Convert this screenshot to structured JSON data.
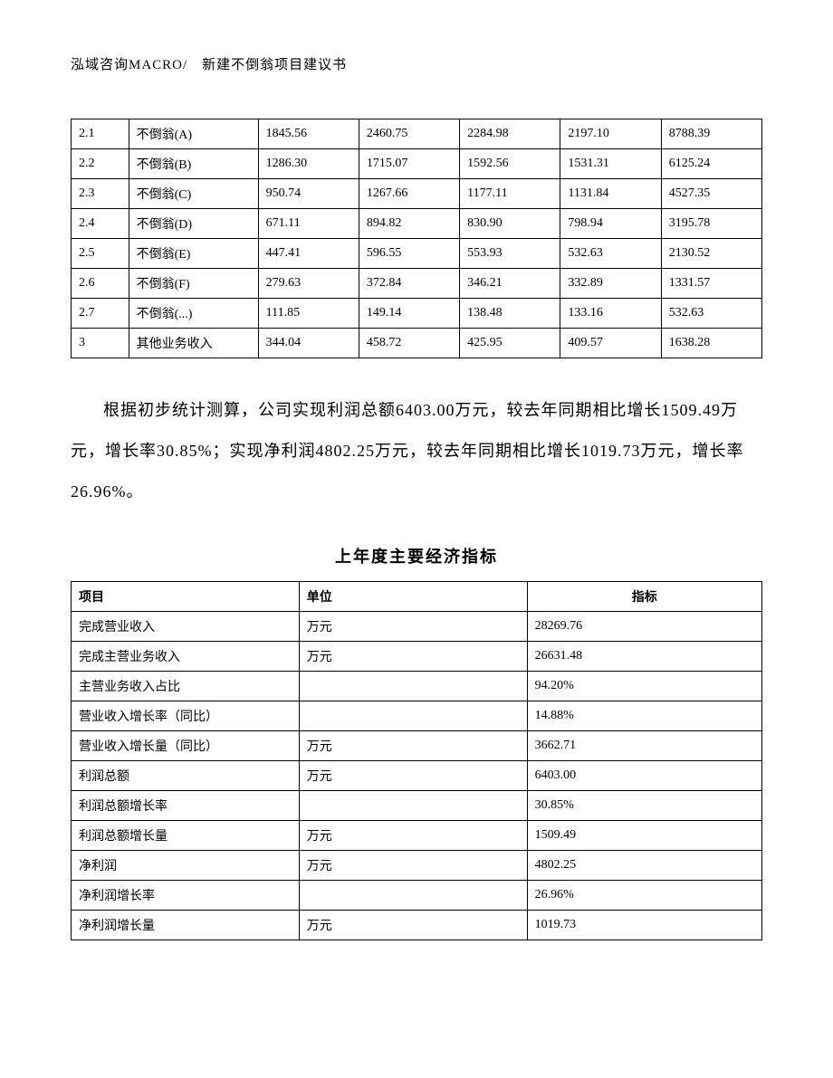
{
  "header": "泓域咨询MACRO/　新建不倒翁项目建议书",
  "table1": {
    "type": "table",
    "border_color": "#000000",
    "background_color": "#ffffff",
    "font_size": 14,
    "rows": [
      [
        "2.1",
        "不倒翁(A)",
        "1845.56",
        "2460.75",
        "2284.98",
        "2197.10",
        "8788.39"
      ],
      [
        "2.2",
        "不倒翁(B)",
        "1286.30",
        "1715.07",
        "1592.56",
        "1531.31",
        "6125.24"
      ],
      [
        "2.3",
        "不倒翁(C)",
        "950.74",
        "1267.66",
        "1177.11",
        "1131.84",
        "4527.35"
      ],
      [
        "2.4",
        "不倒翁(D)",
        "671.11",
        "894.82",
        "830.90",
        "798.94",
        "3195.78"
      ],
      [
        "2.5",
        "不倒翁(E)",
        "447.41",
        "596.55",
        "553.93",
        "532.63",
        "2130.52"
      ],
      [
        "2.6",
        "不倒翁(F)",
        "279.63",
        "372.84",
        "346.21",
        "332.89",
        "1331.57"
      ],
      [
        "2.7",
        "不倒翁(...)",
        "111.85",
        "149.14",
        "138.48",
        "133.16",
        "532.63"
      ],
      [
        "3",
        "其他业务收入",
        "344.04",
        "458.72",
        "425.95",
        "409.57",
        "1638.28"
      ]
    ]
  },
  "paragraph": "根据初步统计测算，公司实现利润总额6403.00万元，较去年同期相比增长1509.49万元，增长率30.85%；实现净利润4802.25万元，较去年同期相比增长1019.73万元，增长率26.96%。",
  "section_title": "上年度主要经济指标",
  "table2": {
    "type": "table",
    "border_color": "#000000",
    "background_color": "#ffffff",
    "font_size": 14,
    "headers": [
      "项目",
      "单位",
      "指标"
    ],
    "rows": [
      [
        "完成营业收入",
        "万元",
        "28269.76"
      ],
      [
        "完成主营业务收入",
        "万元",
        "26631.48"
      ],
      [
        "主营业务收入占比",
        "",
        "94.20%"
      ],
      [
        "营业收入增长率（同比）",
        "",
        "14.88%"
      ],
      [
        "营业收入增长量（同比）",
        "万元",
        "3662.71"
      ],
      [
        "利润总额",
        "万元",
        "6403.00"
      ],
      [
        "利润总额增长率",
        "",
        "30.85%"
      ],
      [
        "利润总额增长量",
        "万元",
        "1509.49"
      ],
      [
        "净利润",
        "万元",
        "4802.25"
      ],
      [
        "净利润增长率",
        "",
        "26.96%"
      ],
      [
        "净利润增长量",
        "万元",
        "1019.73"
      ]
    ]
  }
}
